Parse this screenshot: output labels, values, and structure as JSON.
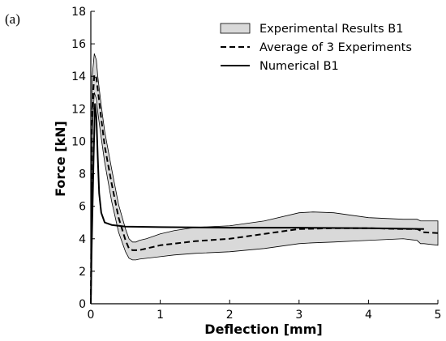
{
  "panel_label": "(a)",
  "chart_data": {
    "type": "line",
    "xlabel": "Deflection [mm]",
    "ylabel": "Force [kN]",
    "xlim": [
      0,
      5
    ],
    "ylim": [
      0,
      18
    ],
    "xticks": [
      0,
      1,
      2,
      3,
      4,
      5
    ],
    "yticks": [
      0,
      2,
      4,
      6,
      8,
      10,
      12,
      14,
      16,
      18
    ],
    "grid": false,
    "legend_position": "top-right",
    "series": [
      {
        "name": "Experimental Results B1",
        "kind": "band",
        "color": "#d9d9d9",
        "x": [
          0.0,
          0.02,
          0.05,
          0.08,
          0.1,
          0.15,
          0.2,
          0.3,
          0.4,
          0.5,
          0.55,
          0.6,
          0.65,
          0.7,
          0.8,
          1.0,
          1.2,
          1.5,
          2.0,
          2.5,
          3.0,
          3.2,
          3.5,
          4.0,
          4.5,
          4.7,
          4.75,
          4.8,
          5.0
        ],
        "upper": [
          0.0,
          14.0,
          15.4,
          15.0,
          14.0,
          12.2,
          10.6,
          8.3,
          6.1,
          4.6,
          4.0,
          3.8,
          3.8,
          3.9,
          4.0,
          4.3,
          4.5,
          4.7,
          4.8,
          5.1,
          5.6,
          5.65,
          5.6,
          5.3,
          5.2,
          5.2,
          5.1,
          5.1,
          5.1
        ],
        "lower": [
          0.0,
          10.5,
          13.0,
          12.6,
          11.8,
          10.2,
          8.7,
          6.3,
          4.4,
          3.2,
          2.8,
          2.7,
          2.7,
          2.75,
          2.8,
          2.9,
          3.0,
          3.1,
          3.2,
          3.4,
          3.7,
          3.75,
          3.8,
          3.9,
          4.0,
          3.9,
          3.7,
          3.7,
          3.6
        ]
      },
      {
        "name": "Average of 3 Experiments",
        "kind": "dashed",
        "color": "#000000",
        "x": [
          0.0,
          0.02,
          0.05,
          0.08,
          0.1,
          0.15,
          0.2,
          0.3,
          0.4,
          0.5,
          0.55,
          0.6,
          0.65,
          0.7,
          0.8,
          1.0,
          1.2,
          1.5,
          2.0,
          2.5,
          3.0,
          3.5,
          4.0,
          4.5,
          4.7,
          4.8,
          5.0
        ],
        "y": [
          0.0,
          12.0,
          14.1,
          13.9,
          13.2,
          11.4,
          9.7,
          7.4,
          5.3,
          3.9,
          3.4,
          3.3,
          3.3,
          3.3,
          3.4,
          3.6,
          3.7,
          3.85,
          4.0,
          4.3,
          4.6,
          4.65,
          4.65,
          4.6,
          4.6,
          4.4,
          4.35
        ]
      },
      {
        "name": "Numerical B1",
        "kind": "solid",
        "color": "#000000",
        "x": [
          0.0,
          0.01,
          0.02,
          0.04,
          0.06,
          0.08,
          0.1,
          0.12,
          0.15,
          0.2,
          0.3,
          0.5,
          1.0,
          2.0,
          3.0,
          4.0,
          4.8
        ],
        "y": [
          0.0,
          3.0,
          5.0,
          9.0,
          12.3,
          11.5,
          9.0,
          6.8,
          5.6,
          5.0,
          4.85,
          4.75,
          4.72,
          4.68,
          4.68,
          4.65,
          4.6
        ]
      }
    ]
  }
}
